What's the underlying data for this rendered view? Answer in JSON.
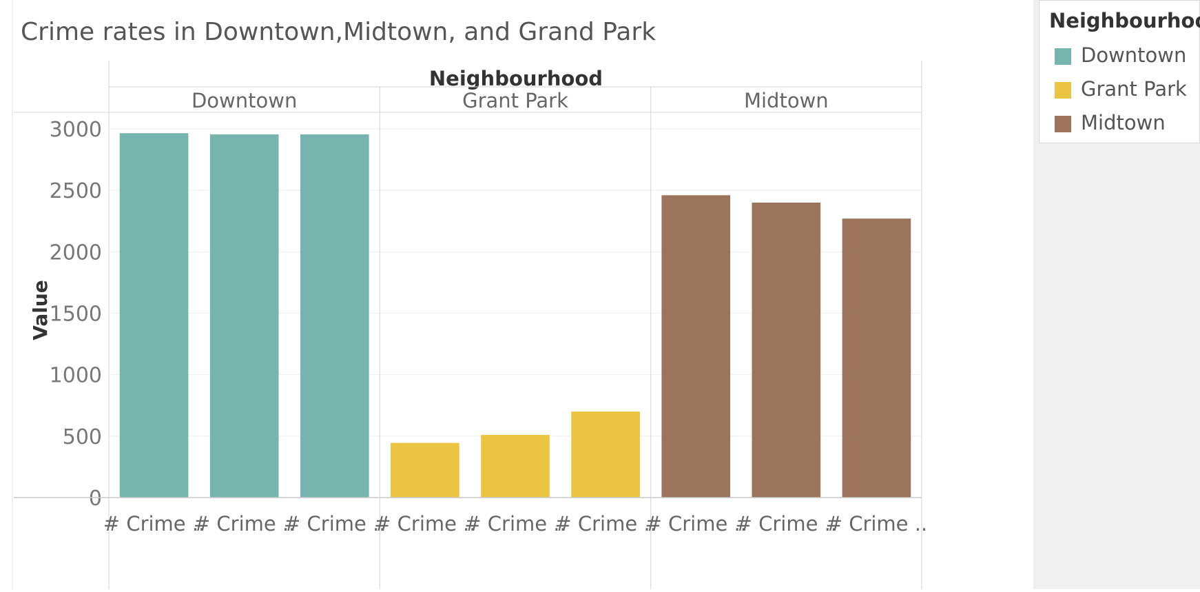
{
  "chart_data": {
    "type": "bar",
    "title": "Crime rates in Downtown,Midtown, and Grand Park",
    "ylabel": "Value",
    "column_header": "Neighbourhood",
    "ylim": [
      0,
      3000
    ],
    "yticks": [
      0,
      500,
      1000,
      1500,
      2000,
      2500,
      3000
    ],
    "grid": true,
    "legend_position": "top-right",
    "groups": [
      {
        "name": "Downtown",
        "color": "#76b5af",
        "categories": [
          "# Crime ..",
          "# Crime ..",
          "# Crime .."
        ],
        "values": [
          2965,
          2955,
          2955
        ]
      },
      {
        "name": "Grant Park",
        "color": "#ebc542",
        "categories": [
          "# Crime ..",
          "# Crime ..",
          "# Crime .."
        ],
        "values": [
          445,
          510,
          700
        ]
      },
      {
        "name": "Midtown",
        "color": "#9c745c",
        "categories": [
          "# Crime ..",
          "# Crime ..",
          "# Crime .."
        ],
        "values": [
          2460,
          2400,
          2270
        ]
      }
    ]
  },
  "legend": {
    "title": "Neighbourhood",
    "items": [
      {
        "label": "Downtown",
        "color": "#76b5af"
      },
      {
        "label": "Grant Park",
        "color": "#ebc542"
      },
      {
        "label": "Midtown",
        "color": "#9c745c"
      }
    ]
  }
}
